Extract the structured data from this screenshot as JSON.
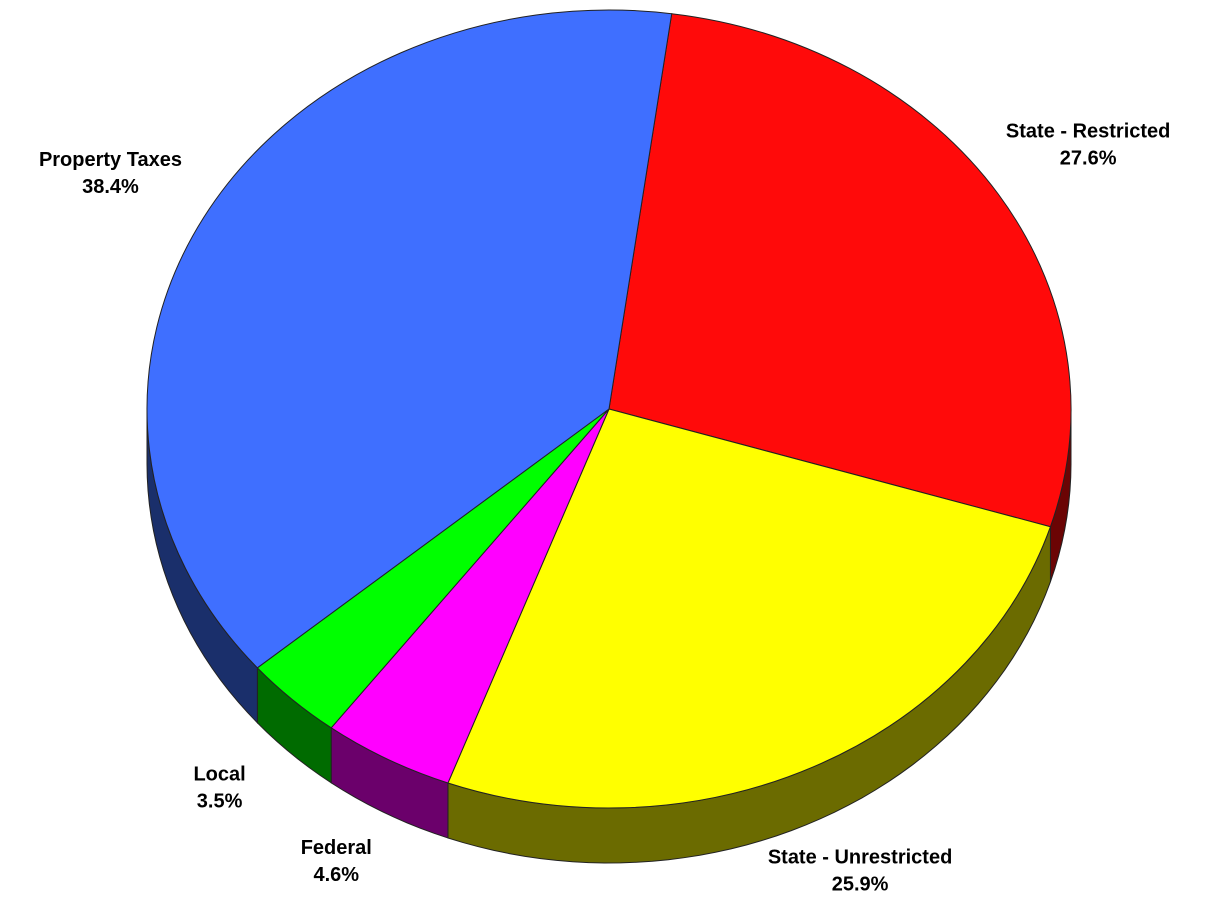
{
  "chart_data": {
    "type": "pie",
    "categories": [
      "State - Restricted",
      "State - Unrestricted",
      "Federal",
      "Local",
      "Property Taxes"
    ],
    "values": [
      27.6,
      25.9,
      4.6,
      3.5,
      38.4
    ],
    "value_labels": [
      "27.6%",
      "25.9%",
      "4.6%",
      "3.5%",
      "38.4%"
    ],
    "colors": [
      "#ff0a0a",
      "#ffff00",
      "#ff00ff",
      "#00ff00",
      "#3f6fff"
    ]
  }
}
